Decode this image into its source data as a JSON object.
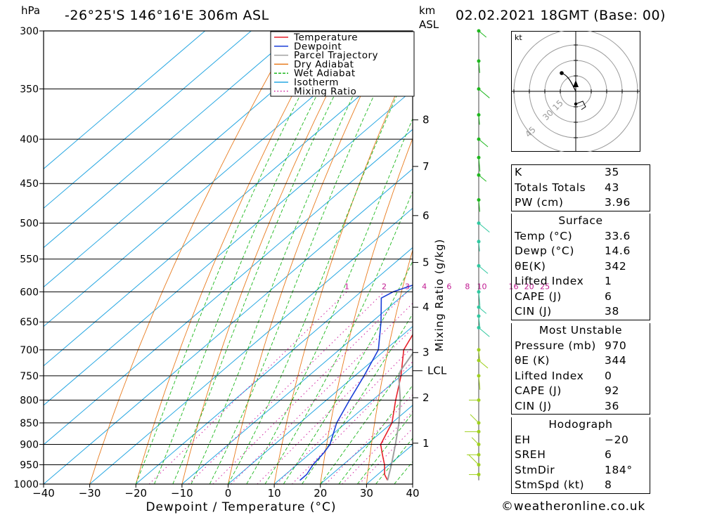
{
  "header": {
    "pressure_unit": "hPa",
    "location": "-26°25'S 146°16'E 306m ASL",
    "height_unit_line1": "km",
    "height_unit_line2": "ASL",
    "datetime": "02.02.2021 18GMT (Base: 00)"
  },
  "chart_data": {
    "type": "line",
    "title": "Skew-T log-P diagram",
    "xlabel": "Dewpoint / Temperature (°C)",
    "ylabel": "hPa",
    "mixing_ratio_axis_label": "Mixing Ratio (g/kg)",
    "xlim": [
      -40,
      40
    ],
    "ylim": [
      1000,
      300
    ],
    "x_ticks": [
      -40,
      -30,
      -20,
      -10,
      0,
      10,
      20,
      30,
      40
    ],
    "x_tick_labels": [
      "−40",
      "−30",
      "−20",
      "−10",
      "0",
      "10",
      "20",
      "30",
      "40"
    ],
    "pressure_levels": [
      300,
      350,
      400,
      450,
      500,
      550,
      600,
      650,
      700,
      750,
      800,
      850,
      900,
      950,
      1000
    ],
    "height_ticks": [
      {
        "km": "8",
        "p": 380
      },
      {
        "km": "7",
        "p": 430
      },
      {
        "km": "6",
        "p": 490
      },
      {
        "km": "5",
        "p": 555
      },
      {
        "km": "4",
        "p": 625
      },
      {
        "km": "3",
        "p": 705
      },
      {
        "km": "2",
        "p": 795
      },
      {
        "km": "1",
        "p": 897
      }
    ],
    "lcl_label": "LCL",
    "lcl_pressure": 740,
    "mixing_ratio_labels": [
      "1",
      "2",
      "3",
      "4",
      "6",
      "8",
      "10",
      "16",
      "20",
      "25"
    ],
    "legend": {
      "placement": "top-right",
      "entries": [
        {
          "name": "Temperature",
          "color": "#e8202a"
        },
        {
          "name": "Dewpoint",
          "color": "#1a3ed8"
        },
        {
          "name": "Parcel Trajectory",
          "color": "#a0a0a0"
        },
        {
          "name": "Dry Adiabat",
          "color": "#e87b1e"
        },
        {
          "name": "Wet Adiabat",
          "color": "#1eb81e"
        },
        {
          "name": "Isotherm",
          "color": "#27a7e2"
        },
        {
          "name": "Mixing Ratio",
          "color": "#d020a0"
        }
      ]
    },
    "series": [
      {
        "name": "Temperature",
        "color": "#e8202a",
        "p": [
          990,
          975,
          950,
          925,
          900,
          850,
          800,
          750,
          700,
          650,
          600,
          550,
          500,
          470,
          450,
          420,
          400,
          380,
          360
        ],
        "values": [
          33.6,
          31.5,
          29,
          26,
          23,
          20,
          15,
          10,
          4,
          0.5,
          -3.5,
          -8,
          -13,
          -12.5,
          -13,
          -13.5,
          -14,
          -16.5,
          -19
        ]
      },
      {
        "name": "Dewpoint",
        "color": "#1a3ed8",
        "p": [
          990,
          975,
          950,
          920,
          900,
          850,
          800,
          750,
          700,
          650,
          610,
          600,
          560,
          540,
          505,
          500,
          497,
          490,
          487,
          470,
          465,
          450,
          400,
          350,
          300
        ],
        "values": [
          14.6,
          14.6,
          13.5,
          12.8,
          12,
          8,
          5,
          2,
          -1.5,
          -8,
          -14,
          -13,
          -3,
          -4,
          -4.5,
          -9,
          -4.5,
          -22,
          -10,
          -0.5,
          0,
          -35,
          -40,
          -30,
          -45
        ]
      },
      {
        "name": "Parcel Trajectory",
        "color": "#a0a0a0",
        "p": [
          990,
          950,
          900,
          850,
          800,
          750,
          740,
          700,
          650,
          600,
          550,
          500,
          450,
          400,
          350,
          310
        ],
        "values": [
          33.6,
          30.5,
          26.2,
          21.5,
          16,
          9.5,
          8.6,
          6.5,
          2.5,
          -2,
          -7.5,
          -13,
          -19.5,
          -27,
          -37,
          -46
        ]
      }
    ]
  },
  "hodograph": {
    "unit": "kt",
    "ring_labels": [
      "15",
      "30",
      "45"
    ]
  },
  "indices": {
    "rows": [
      {
        "label": "K",
        "value": "35"
      },
      {
        "label": "Totals Totals",
        "value": "43"
      },
      {
        "label": "PW (cm)",
        "value": "3.96"
      }
    ]
  },
  "surface": {
    "title": "Surface",
    "rows": [
      {
        "label": "Temp (°C)",
        "value": "33.6"
      },
      {
        "label": "Dewp (°C)",
        "value": "14.6"
      },
      {
        "label": "θE(K)",
        "value": "342"
      },
      {
        "label": "Lifted Index",
        "value": "1"
      },
      {
        "label": "CAPE (J)",
        "value": "6"
      },
      {
        "label": "CIN (J)",
        "value": "38"
      }
    ]
  },
  "most_unstable": {
    "title": "Most Unstable",
    "rows": [
      {
        "label": "Pressure (mb)",
        "value": "970"
      },
      {
        "label": "θE (K)",
        "value": "344"
      },
      {
        "label": "Lifted Index",
        "value": "0"
      },
      {
        "label": "CAPE (J)",
        "value": "92"
      },
      {
        "label": "CIN (J)",
        "value": "36"
      }
    ]
  },
  "hodo_table": {
    "title": "Hodograph",
    "rows": [
      {
        "label": "EH",
        "value": "−20"
      },
      {
        "label": "SREH",
        "value": "6"
      },
      {
        "label": "StmDir",
        "value": "184°"
      },
      {
        "label": "StmSpd (kt)",
        "value": "8"
      }
    ]
  },
  "credit": "©weatheronline.co.uk"
}
